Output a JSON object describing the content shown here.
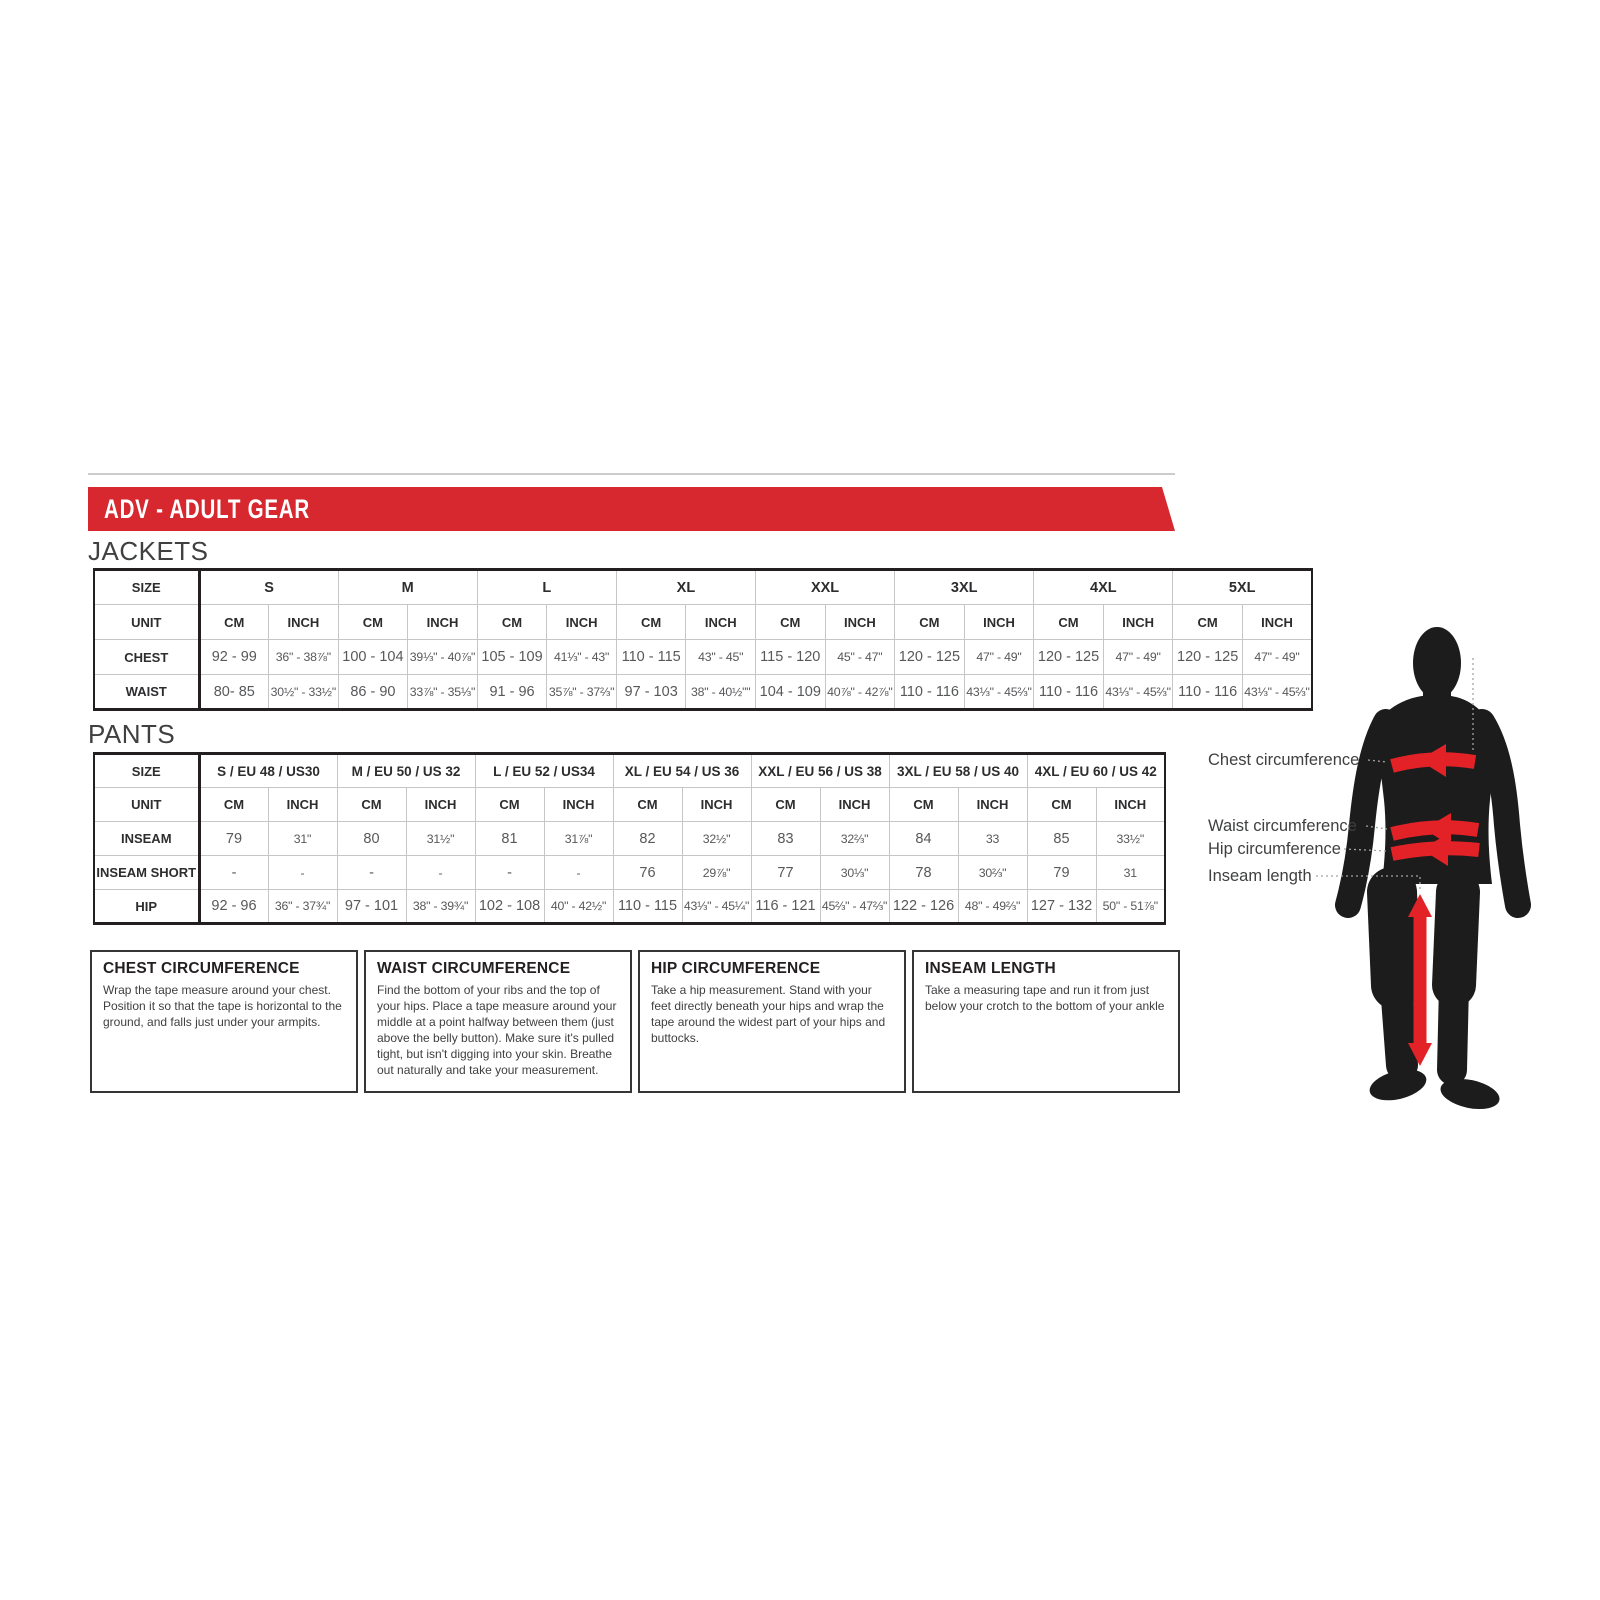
{
  "banner": {
    "title": "ADV - ADULT GEAR"
  },
  "sections": {
    "jackets_title": "JACKETS",
    "pants_title": "PANTS"
  },
  "jackets_table": {
    "corner_label": "SIZE",
    "unit_label": "UNIT",
    "cm_label": "CM",
    "inch_label": "INCH",
    "sizes": [
      "S",
      "M",
      "L",
      "XL",
      "XXL",
      "3XL",
      "4XL",
      "5XL"
    ],
    "rows": [
      {
        "label": "CHEST",
        "cells": [
          [
            "92 - 99",
            "36\" - 38⅞\""
          ],
          [
            "100 - 104",
            "39⅓\" - 40⅞\""
          ],
          [
            "105 - 109",
            "41⅓\" - 43\""
          ],
          [
            "110 - 115",
            "43\" - 45\""
          ],
          [
            "115 - 120",
            "45\" - 47\""
          ],
          [
            "120 - 125",
            "47\" - 49\""
          ],
          [
            "120 - 125",
            "47\" - 49\""
          ],
          [
            "120 - 125",
            "47\" - 49\""
          ]
        ]
      },
      {
        "label": "WAIST",
        "cells": [
          [
            "80- 85",
            "30½\" - 33½\""
          ],
          [
            "86 - 90",
            "33⅞\" - 35⅓\""
          ],
          [
            "91 - 96",
            "35⅞\" - 37⅔\""
          ],
          [
            "97 - 103",
            "38\" - 40½\"\""
          ],
          [
            "104 - 109",
            "40⅞\" - 42⅞\""
          ],
          [
            "110 - 116",
            "43⅓\" - 45⅔\""
          ],
          [
            "110 - 116",
            "43⅓\" - 45⅔\""
          ],
          [
            "110 - 116",
            "43⅓\" - 45⅔\""
          ]
        ]
      }
    ]
  },
  "pants_table": {
    "corner_label": "SIZE",
    "unit_label": "UNIT",
    "cm_label": "CM",
    "inch_label": "INCH",
    "sizes": [
      "S / EU 48 / US30",
      "M / EU 50 / US 32",
      "L / EU 52 / US34",
      "XL / EU 54 / US 36",
      "XXL / EU 56 / US 38",
      "3XL / EU 58 / US 40",
      "4XL / EU 60 / US 42"
    ],
    "rows": [
      {
        "label": "INSEAM",
        "cells": [
          [
            "79",
            "31\""
          ],
          [
            "80",
            "31½\""
          ],
          [
            "81",
            "31⅞\""
          ],
          [
            "82",
            "32½\""
          ],
          [
            "83",
            "32⅔\""
          ],
          [
            "84",
            "33"
          ],
          [
            "85",
            "33½\""
          ]
        ]
      },
      {
        "label": "INSEAM SHORT",
        "cells": [
          [
            "-",
            "-"
          ],
          [
            "-",
            "-"
          ],
          [
            "-",
            "-"
          ],
          [
            "76",
            "29⅞\""
          ],
          [
            "77",
            "30⅓\""
          ],
          [
            "78",
            "30⅔\""
          ],
          [
            "79",
            "31"
          ]
        ]
      },
      {
        "label": "HIP",
        "cells": [
          [
            "92 - 96",
            "36\" - 37¾\""
          ],
          [
            "97 - 101",
            "38\" - 39¾\""
          ],
          [
            "102 - 108",
            "40\" - 42½\""
          ],
          [
            "110 - 115",
            "43⅓\" - 45¼\""
          ],
          [
            "116 - 121",
            "45⅔\" - 47⅔\""
          ],
          [
            "122 - 126",
            "48\" - 49⅔\""
          ],
          [
            "127 - 132",
            "50\" - 51⅞\""
          ]
        ]
      }
    ]
  },
  "info_boxes": [
    {
      "title": "CHEST CIRCUMFERENCE",
      "text": "Wrap the tape measure around your chest. Position it so that the tape is horizontal to the ground, and falls just under your armpits."
    },
    {
      "title": "WAIST CIRCUMFERENCE",
      "text": "Find the bottom of your ribs and the top of your hips. Place a tape measure around your middle at a point halfway between them (just above the belly button). Make sure it's pulled tight, but isn't digging into your skin. Breathe out naturally and take your measurement."
    },
    {
      "title": "HIP CIRCUMFERENCE",
      "text": "Take a hip measurement. Stand with your feet directly beneath your hips and wrap the tape around the widest part of your hips and buttocks."
    },
    {
      "title": "INSEAM LENGTH",
      "text": "Take a measuring tape and run it from just below your crotch to the bottom of your ankle"
    }
  ],
  "diagram": {
    "labels": {
      "chest": "Chest circumference",
      "waist": "Waist circumference",
      "hip": "Hip circumference",
      "inseam": "Inseam length"
    }
  },
  "colors": {
    "accent_red": "#d7282f",
    "arrow_red": "#e32227",
    "table_border": "#231f20",
    "grid_line": "#c6c6c6",
    "value_text": "#57585a"
  }
}
